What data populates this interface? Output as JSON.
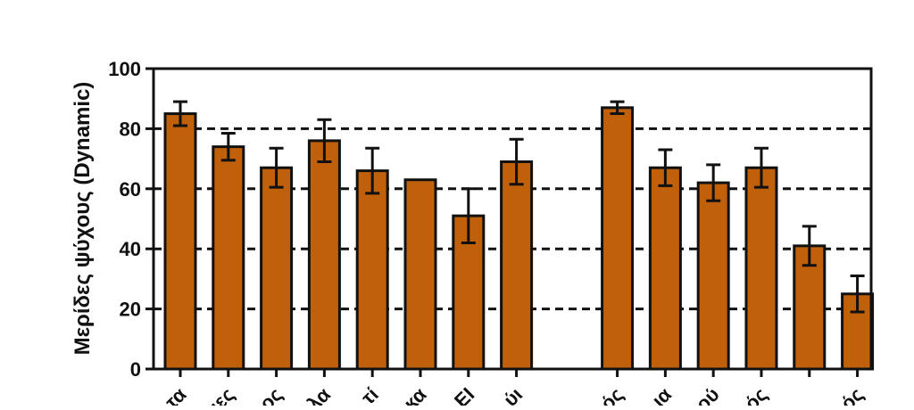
{
  "chart_data": {
    "type": "bar",
    "title": "",
    "xlabel": "",
    "ylabel": "Μερίδες ψύχους (Dynamic)",
    "ylim": [
      0,
      100
    ],
    "yticks": [
      0,
      20,
      40,
      60,
      80,
      100
    ],
    "ytick_labels": [
      "0",
      "20",
      "40",
      "60",
      "80",
      "100"
    ],
    "grid": "dashed horizontal at 20, 40, 60, 80",
    "legend": "none",
    "bar_color": "#c0600a",
    "categories": [
      "τα",
      "ιες",
      "ος",
      "λα",
      "τί",
      "κα",
      "ΕΙ",
      "ύι",
      "ός",
      "ια",
      "ού",
      "ός",
      "",
      "ός"
    ],
    "group_gap_after_index": 7,
    "values": [
      85,
      74,
      67,
      76,
      66,
      63,
      51,
      69,
      87,
      67,
      62,
      67,
      41,
      25
    ],
    "errors": [
      4,
      4.5,
      6.5,
      7,
      7.5,
      null,
      9,
      7.5,
      2,
      6,
      6,
      6.5,
      6.5,
      6
    ]
  }
}
